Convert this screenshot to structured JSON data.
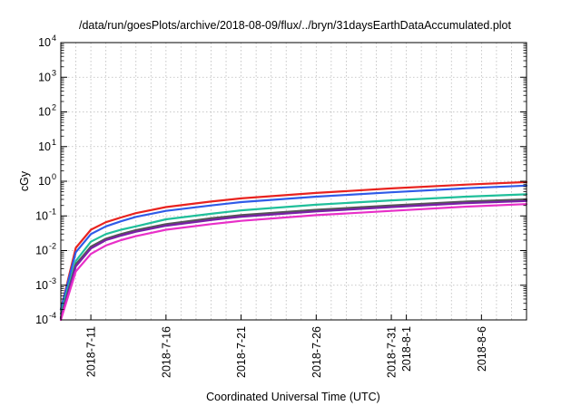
{
  "chart_data": {
    "type": "line",
    "title": "/data/run/goesPlots/archive/2018-08-09/flux/../bryn/31daysEarthDataAccumulated.plot",
    "xlabel": "Coordinated Universal Time (UTC)",
    "ylabel": "cGy",
    "y_scale": "log",
    "ylim": [
      0.0001,
      10000
    ],
    "xlim": [
      "2018-07-09",
      "2018-08-09"
    ],
    "grid": true,
    "legend": "none",
    "x_ticks": [
      "2018-7-11",
      "2018-7-16",
      "2018-7-21",
      "2018-7-26",
      "2018-7-31",
      "2018-8-1",
      "2018-8-6"
    ],
    "y_ticks": [
      {
        "value": 0.0001,
        "base": "10",
        "exp": "-4"
      },
      {
        "value": 0.001,
        "base": "10",
        "exp": "-3"
      },
      {
        "value": 0.01,
        "base": "10",
        "exp": "-2"
      },
      {
        "value": 0.1,
        "base": "10",
        "exp": "-1"
      },
      {
        "value": 1,
        "base": "10",
        "exp": "0"
      },
      {
        "value": 10,
        "base": "10",
        "exp": "1"
      },
      {
        "value": 100,
        "base": "10",
        "exp": "2"
      },
      {
        "value": 1000,
        "base": "10",
        "exp": "3"
      },
      {
        "value": 10000,
        "base": "10",
        "exp": "4"
      }
    ],
    "series": [
      {
        "color": "#e8231f",
        "x": [
          "2018-07-09",
          "2018-07-10",
          "2018-07-11",
          "2018-07-12",
          "2018-07-13",
          "2018-07-14",
          "2018-07-16",
          "2018-07-19",
          "2018-07-21",
          "2018-07-26",
          "2018-07-31",
          "2018-08-05",
          "2018-08-09"
        ],
        "values": [
          0.0002,
          0.012,
          0.04,
          0.066,
          0.09,
          0.12,
          0.18,
          0.26,
          0.32,
          0.46,
          0.62,
          0.8,
          0.95
        ]
      },
      {
        "color": "#2f5be8",
        "x": [
          "2018-07-09",
          "2018-07-10",
          "2018-07-11",
          "2018-07-12",
          "2018-07-13",
          "2018-07-14",
          "2018-07-16",
          "2018-07-19",
          "2018-07-21",
          "2018-07-26",
          "2018-07-31",
          "2018-08-05",
          "2018-08-09"
        ],
        "values": [
          0.0002,
          0.009,
          0.03,
          0.05,
          0.07,
          0.094,
          0.14,
          0.2,
          0.25,
          0.36,
          0.48,
          0.63,
          0.75
        ]
      },
      {
        "color": "#1fbf9a",
        "x": [
          "2018-07-09",
          "2018-07-10",
          "2018-07-11",
          "2018-07-12",
          "2018-07-13",
          "2018-07-14",
          "2018-07-16",
          "2018-07-19",
          "2018-07-21",
          "2018-07-26",
          "2018-07-31",
          "2018-08-05",
          "2018-08-09"
        ],
        "values": [
          0.00015,
          0.005,
          0.018,
          0.03,
          0.04,
          0.05,
          0.08,
          0.115,
          0.145,
          0.21,
          0.28,
          0.36,
          0.42
        ]
      },
      {
        "color": "#555555",
        "x": [
          "2018-07-09",
          "2018-07-10",
          "2018-07-11",
          "2018-07-12",
          "2018-07-13",
          "2018-07-14",
          "2018-07-16",
          "2018-07-19",
          "2018-07-21",
          "2018-07-26",
          "2018-07-31",
          "2018-08-05",
          "2018-08-09"
        ],
        "values": [
          0.00012,
          0.004,
          0.013,
          0.022,
          0.03,
          0.039,
          0.058,
          0.085,
          0.105,
          0.15,
          0.2,
          0.26,
          0.3
        ]
      },
      {
        "color": "#7a1fa8",
        "x": [
          "2018-07-09",
          "2018-07-10",
          "2018-07-11",
          "2018-07-12",
          "2018-07-13",
          "2018-07-14",
          "2018-07-16",
          "2018-07-19",
          "2018-07-21",
          "2018-07-26",
          "2018-07-31",
          "2018-08-05",
          "2018-08-09"
        ],
        "values": [
          0.00011,
          0.0035,
          0.0115,
          0.02,
          0.027,
          0.035,
          0.052,
          0.076,
          0.095,
          0.135,
          0.18,
          0.235,
          0.27
        ]
      },
      {
        "color": "#e82fc8",
        "x": [
          "2018-07-09",
          "2018-07-10",
          "2018-07-11",
          "2018-07-12",
          "2018-07-13",
          "2018-07-14",
          "2018-07-16",
          "2018-07-19",
          "2018-07-21",
          "2018-07-26",
          "2018-07-31",
          "2018-08-05",
          "2018-08-09"
        ],
        "values": [
          0.0001,
          0.0025,
          0.008,
          0.014,
          0.02,
          0.026,
          0.04,
          0.058,
          0.072,
          0.105,
          0.14,
          0.185,
          0.22
        ]
      }
    ]
  }
}
